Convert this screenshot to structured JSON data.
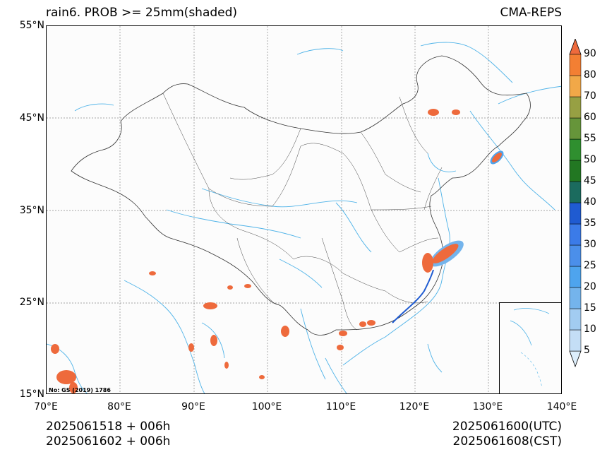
{
  "title_left": "rain6. PROB >= 25mm(shaded)",
  "title_right": "CMA-REPS",
  "lat_labels": [
    "55°N",
    "45°N",
    "35°N",
    "25°N",
    "15°N"
  ],
  "lon_labels": [
    "70°E",
    "80°E",
    "90°E",
    "100°E",
    "110°E",
    "120°E",
    "130°E",
    "140°E"
  ],
  "footer_left": [
    "2025061518  +  006h",
    "2025061602  +  006h"
  ],
  "footer_right": [
    "2025061600(UTC)",
    "2025061608(CST)"
  ],
  "gs_note": "No: GS (2019) 1786",
  "colorbar": {
    "levels": [
      "5",
      "10",
      "15",
      "20",
      "25",
      "30",
      "35",
      "40",
      "45",
      "50",
      "55",
      "60",
      "70",
      "80",
      "90"
    ],
    "colors": [
      "#ddeefb",
      "#c4def6",
      "#a2ccf1",
      "#74b4ec",
      "#4ea4ee",
      "#4b8fea",
      "#3b7be8",
      "#1f5bd1",
      "#1b6b5e",
      "#227722",
      "#2f8f2f",
      "#66953a",
      "#97a043",
      "#f1a848",
      "#f37f33",
      "#ee6a3c"
    ]
  },
  "map": {
    "lon_range": [
      70,
      140
    ],
    "lat_range": [
      15,
      55
    ],
    "gridlines": true,
    "colors": {
      "river": "#4fb3e8",
      "border": "#333333",
      "rain": "#ee6a3c"
    }
  }
}
